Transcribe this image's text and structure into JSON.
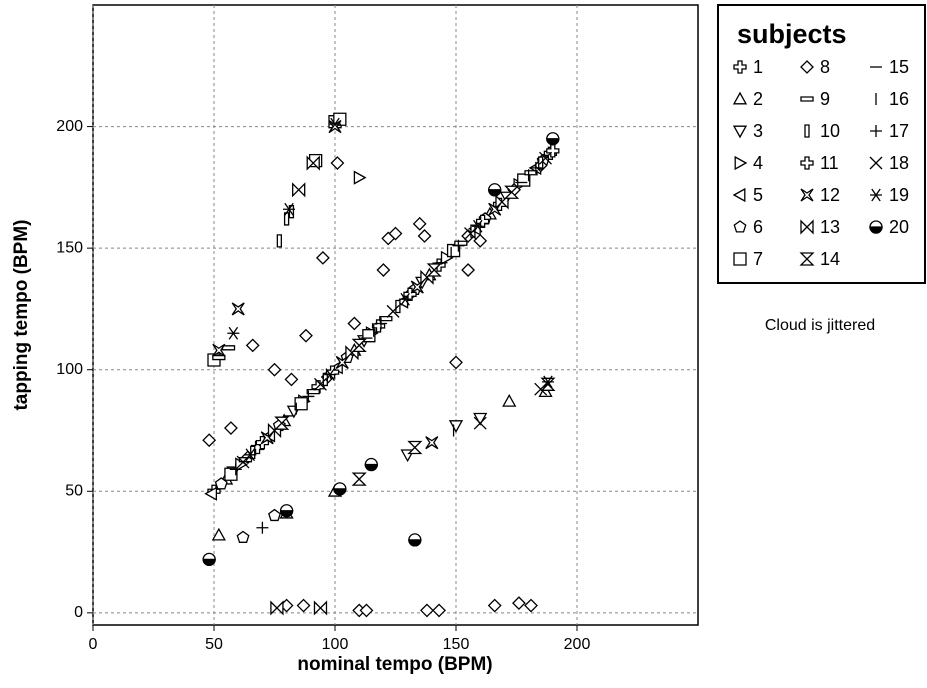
{
  "chart_data": {
    "type": "scatter",
    "x_label": "nominal tempo (BPM)",
    "y_label": "tapping tempo (BPM)",
    "xlim": [
      0,
      250
    ],
    "ylim": [
      -5,
      250
    ],
    "xticks": [
      0,
      50,
      100,
      150,
      200
    ],
    "yticks": [
      0,
      50,
      100,
      150,
      200
    ],
    "grid": true,
    "legend_title": "subjects",
    "legend_position": "right",
    "annotation": "Cloud is jittered",
    "color": "#000000",
    "series": [
      {
        "name": "1",
        "marker": "cross-thick",
        "x": [
          50,
          68,
          93,
          118,
          143,
          168,
          189
        ],
        "values": [
          50,
          68,
          93,
          118,
          143,
          168,
          189
        ]
      },
      {
        "name": "2",
        "marker": "triangle-up",
        "x": [
          55,
          79,
          108,
          139,
          164,
          52,
          80,
          100,
          172,
          187
        ],
        "values": [
          55,
          79,
          108,
          139,
          164,
          32,
          41,
          50,
          87,
          91
        ]
      },
      {
        "name": "3",
        "marker": "triangle-down",
        "x": [
          58,
          83,
          112,
          136,
          171,
          150,
          160,
          130
        ],
        "values": [
          58,
          83,
          112,
          136,
          171,
          77,
          80,
          65
        ]
      },
      {
        "name": "4",
        "marker": "triangle-right",
        "x": [
          61,
          87,
          115,
          146,
          176,
          110
        ],
        "values": [
          61,
          87,
          115,
          146,
          176,
          179
        ]
      },
      {
        "name": "5",
        "marker": "triangle-left",
        "x": [
          49,
          73,
          101,
          128,
          158,
          183
        ],
        "values": [
          49,
          73,
          101,
          128,
          158,
          183
        ]
      },
      {
        "name": "6",
        "marker": "pentagon",
        "x": [
          53,
          77,
          105,
          133,
          162,
          186,
          62,
          75
        ],
        "values": [
          53,
          77,
          105,
          133,
          162,
          186,
          31,
          40
        ]
      },
      {
        "name": "7",
        "marker": "square",
        "x": [
          57,
          86,
          114,
          149,
          178,
          50,
          100,
          102,
          92
        ],
        "values": [
          57,
          86,
          114,
          149,
          178,
          104,
          202,
          203,
          186
        ]
      },
      {
        "name": "8",
        "marker": "diamond",
        "x": [
          48,
          57,
          66,
          75,
          82,
          88,
          95,
          101,
          108,
          120,
          122,
          125,
          135,
          137,
          150,
          155,
          160,
          185,
          80,
          87,
          110,
          113,
          138,
          143,
          166,
          176,
          181,
          64,
          97,
          131,
          155,
          174
        ],
        "values": [
          71,
          76,
          110,
          100,
          96,
          114,
          146,
          185,
          119,
          141,
          154,
          156,
          160,
          155,
          103,
          141,
          153,
          184,
          3,
          3,
          1,
          1,
          1,
          1,
          3,
          4,
          3,
          64,
          97,
          131,
          155,
          174
        ]
      },
      {
        "name": "9",
        "marker": "rect-wide",
        "x": [
          63,
          91,
          121,
          152,
          181,
          52,
          56
        ],
        "values": [
          63,
          91,
          121,
          152,
          181,
          105,
          109
        ]
      },
      {
        "name": "10",
        "marker": "rect-tall",
        "x": [
          66,
          96,
          126,
          157,
          185,
          77,
          80,
          82
        ],
        "values": [
          66,
          96,
          126,
          157,
          185,
          153,
          162,
          165
        ]
      },
      {
        "name": "11",
        "marker": "cross-thick",
        "x": [
          70,
          99,
          131,
          161,
          190
        ],
        "values": [
          70,
          99,
          131,
          161,
          190
        ]
      },
      {
        "name": "12",
        "marker": "x-thick",
        "x": [
          72,
          103,
          134,
          166,
          52,
          60,
          100,
          140
        ],
        "values": [
          72,
          103,
          134,
          166,
          108,
          125,
          200,
          70
        ]
      },
      {
        "name": "13",
        "marker": "bowtie",
        "x": [
          75,
          107,
          138,
          169,
          85,
          91,
          76,
          94
        ],
        "values": [
          75,
          107,
          138,
          169,
          174,
          185,
          2,
          2
        ]
      },
      {
        "name": "14",
        "marker": "hourglass",
        "x": [
          78,
          110,
          141,
          173,
          110,
          133,
          188
        ],
        "values": [
          78,
          110,
          141,
          173,
          55,
          68,
          94
        ]
      },
      {
        "name": "15",
        "marker": "hline",
        "x": [
          81,
          113,
          144,
          177
        ],
        "values": [
          81,
          113,
          144,
          177
        ]
      },
      {
        "name": "16",
        "marker": "vline",
        "x": [
          84,
          116,
          148,
          180,
          149
        ],
        "values": [
          84,
          116,
          148,
          180,
          75
        ]
      },
      {
        "name": "17",
        "marker": "plus",
        "x": [
          59,
          89,
          119,
          151,
          183,
          70
        ],
        "values": [
          59,
          89,
          119,
          151,
          183,
          35
        ]
      },
      {
        "name": "18",
        "marker": "x",
        "x": [
          62,
          94,
          124,
          156,
          187,
          160,
          185
        ],
        "values": [
          62,
          94,
          124,
          156,
          187,
          78,
          92
        ]
      },
      {
        "name": "19",
        "marker": "asterisk",
        "x": [
          65,
          98,
          129,
          159,
          58,
          81,
          100,
          188
        ],
        "values": [
          65,
          98,
          129,
          159,
          115,
          166,
          201,
          95
        ]
      },
      {
        "name": "20",
        "marker": "half-circle",
        "x": [
          48,
          80,
          102,
          115,
          133,
          166,
          190
        ],
        "values": [
          22,
          42,
          51,
          61,
          30,
          174,
          195
        ]
      }
    ]
  }
}
